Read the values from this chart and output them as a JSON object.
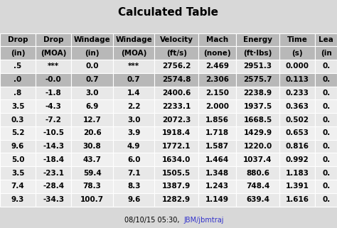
{
  "title": "Calculated Table",
  "headers_line1": [
    "Drop",
    "Drop",
    "Windage",
    "Windage",
    "Velocity",
    "Mach",
    "Energy",
    "Time",
    "Lea"
  ],
  "headers_line2": [
    "(in)",
    "(MOA)",
    "(in)",
    "(MOA)",
    "(ft/s)",
    "(none)",
    "(ft·lbs)",
    "(s)",
    "(in"
  ],
  "rows": [
    [
      ".5",
      "***",
      "0.0",
      "***",
      "2756.2",
      "2.469",
      "2951.3",
      "0.000",
      "0."
    ],
    [
      ".0",
      "-0.0",
      "0.7",
      "0.7",
      "2574.8",
      "2.306",
      "2575.7",
      "0.113",
      "0."
    ],
    [
      ".8",
      "-1.8",
      "3.0",
      "1.4",
      "2400.6",
      "2.150",
      "2238.9",
      "0.233",
      "0."
    ],
    [
      "3.5",
      "-4.3",
      "6.9",
      "2.2",
      "2233.1",
      "2.000",
      "1937.5",
      "0.363",
      "0."
    ],
    [
      "0.3",
      "-7.2",
      "12.7",
      "3.0",
      "2072.3",
      "1.856",
      "1668.5",
      "0.502",
      "0."
    ],
    [
      "5.2",
      "-10.5",
      "20.6",
      "3.9",
      "1918.4",
      "1.718",
      "1429.9",
      "0.653",
      "0."
    ],
    [
      "9.6",
      "-14.3",
      "30.8",
      "4.9",
      "1772.1",
      "1.587",
      "1220.0",
      "0.816",
      "0."
    ],
    [
      "5.0",
      "-18.4",
      "43.7",
      "6.0",
      "1634.0",
      "1.464",
      "1037.4",
      "0.992",
      "0."
    ],
    [
      "3.5",
      "-23.1",
      "59.4",
      "7.1",
      "1505.5",
      "1.348",
      "880.6",
      "1.183",
      "0."
    ],
    [
      "7.4",
      "-28.4",
      "78.3",
      "8.3",
      "1387.9",
      "1.243",
      "748.4",
      "1.391",
      "0."
    ],
    [
      "9.3",
      "-34.3",
      "100.7",
      "9.6",
      "1282.9",
      "1.149",
      "639.4",
      "1.616",
      "0."
    ]
  ],
  "highlighted_row": 1,
  "footer_plain": "08/10/15 05:30, ",
  "footer_link": "JBM/jbmtraj",
  "bg_color": "#d8d8d8",
  "header_bg": "#b8b8b8",
  "highlight_bg": "#b8b8b8",
  "row_bg_even": "#e8e8e8",
  "row_bg_odd": "#f0f0f0",
  "title_fontsize": 11,
  "cell_fontsize": 7.5,
  "header_fontsize": 7.5,
  "col_weights": [
    0.72,
    0.72,
    0.84,
    0.84,
    0.88,
    0.76,
    0.88,
    0.72,
    0.44
  ]
}
